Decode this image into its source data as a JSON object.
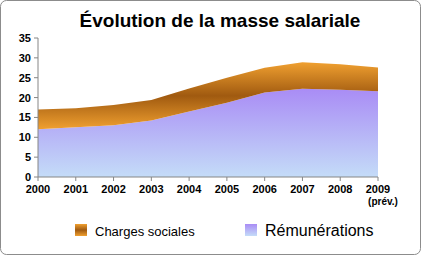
{
  "chart_data": {
    "type": "area",
    "title": "Évolution de la masse salariale",
    "categories": [
      "2000",
      "2001",
      "2002",
      "2003",
      "2004",
      "2005",
      "2006",
      "2007",
      "2008",
      "2009"
    ],
    "annotations": [
      "(prév.)"
    ],
    "stacked": true,
    "grid": false,
    "legend": "bottom",
    "ylim": [
      0,
      35
    ],
    "yticks": [
      0,
      5,
      10,
      15,
      20,
      25,
      30,
      35
    ],
    "series": [
      {
        "name": "Rémunérations",
        "color": "#a98cf5",
        "values": [
          12,
          12.5,
          13,
          14.2,
          16.5,
          18.7,
          21.3,
          22.2,
          22,
          21.6
        ]
      },
      {
        "name": "Charges sociales",
        "color": "#f0a030",
        "values": [
          5,
          4.8,
          5.1,
          5.2,
          5.8,
          6.3,
          6.2,
          6.7,
          6.4,
          6
        ]
      }
    ]
  }
}
